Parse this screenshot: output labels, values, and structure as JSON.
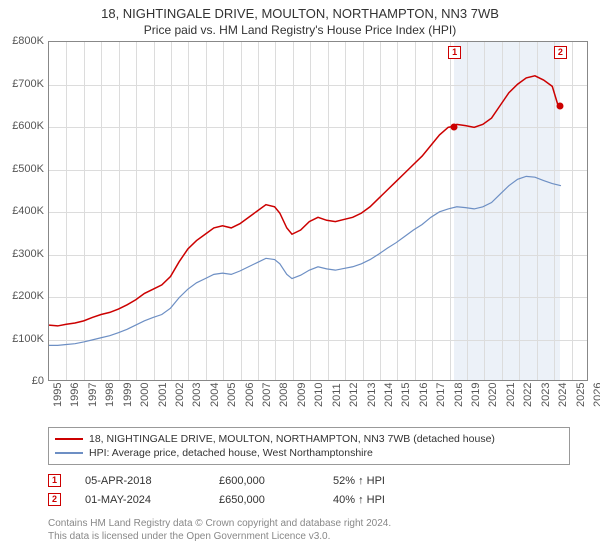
{
  "title": "18, NIGHTINGALE DRIVE, MOULTON, NORTHAMPTON, NN3 7WB",
  "subtitle": "Price paid vs. HM Land Registry's House Price Index (HPI)",
  "chart": {
    "type": "line",
    "background_color": "#ffffff",
    "grid_color": "#dcdcdc",
    "border_color": "#888888",
    "ylim": [
      0,
      800000
    ],
    "ytick_step": 100000,
    "yticks": [
      "£0",
      "£100K",
      "£200K",
      "£300K",
      "£400K",
      "£500K",
      "£600K",
      "£700K",
      "£800K"
    ],
    "xlim": [
      1995,
      2026
    ],
    "xticks": [
      1995,
      1996,
      1997,
      1998,
      1999,
      2000,
      2001,
      2002,
      2003,
      2004,
      2005,
      2006,
      2007,
      2008,
      2009,
      2010,
      2011,
      2012,
      2013,
      2014,
      2015,
      2016,
      2017,
      2018,
      2019,
      2020,
      2021,
      2022,
      2023,
      2024,
      2025,
      2026
    ],
    "label_fontsize": 11,
    "shade_range": [
      2018.26,
      2024.33
    ],
    "shade_color": "rgba(200,215,235,0.35)",
    "series": [
      {
        "name": "red",
        "color": "#cc0000",
        "width": 1.5,
        "data": [
          [
            1995.0,
            130
          ],
          [
            1995.5,
            128
          ],
          [
            1996.0,
            132
          ],
          [
            1996.5,
            135
          ],
          [
            1997.0,
            140
          ],
          [
            1997.5,
            148
          ],
          [
            1998.0,
            155
          ],
          [
            1998.5,
            160
          ],
          [
            1999.0,
            168
          ],
          [
            1999.5,
            178
          ],
          [
            2000.0,
            190
          ],
          [
            2000.5,
            205
          ],
          [
            2001.0,
            215
          ],
          [
            2001.5,
            225
          ],
          [
            2002.0,
            245
          ],
          [
            2002.5,
            280
          ],
          [
            2003.0,
            310
          ],
          [
            2003.5,
            330
          ],
          [
            2004.0,
            345
          ],
          [
            2004.5,
            360
          ],
          [
            2005.0,
            365
          ],
          [
            2005.5,
            360
          ],
          [
            2006.0,
            370
          ],
          [
            2006.5,
            385
          ],
          [
            2007.0,
            400
          ],
          [
            2007.5,
            415
          ],
          [
            2008.0,
            410
          ],
          [
            2008.3,
            395
          ],
          [
            2008.7,
            360
          ],
          [
            2009.0,
            345
          ],
          [
            2009.5,
            355
          ],
          [
            2010.0,
            375
          ],
          [
            2010.5,
            385
          ],
          [
            2011.0,
            378
          ],
          [
            2011.5,
            375
          ],
          [
            2012.0,
            380
          ],
          [
            2012.5,
            385
          ],
          [
            2013.0,
            395
          ],
          [
            2013.5,
            410
          ],
          [
            2014.0,
            430
          ],
          [
            2014.5,
            450
          ],
          [
            2015.0,
            470
          ],
          [
            2015.5,
            490
          ],
          [
            2016.0,
            510
          ],
          [
            2016.5,
            530
          ],
          [
            2017.0,
            555
          ],
          [
            2017.5,
            580
          ],
          [
            2018.0,
            598
          ],
          [
            2018.26,
            600
          ],
          [
            2018.5,
            605
          ],
          [
            2019.0,
            602
          ],
          [
            2019.5,
            598
          ],
          [
            2020.0,
            605
          ],
          [
            2020.5,
            620
          ],
          [
            2021.0,
            650
          ],
          [
            2021.5,
            680
          ],
          [
            2022.0,
            700
          ],
          [
            2022.5,
            715
          ],
          [
            2023.0,
            720
          ],
          [
            2023.5,
            710
          ],
          [
            2024.0,
            695
          ],
          [
            2024.33,
            650
          ]
        ]
      },
      {
        "name": "blue",
        "color": "#6d8fc4",
        "width": 1.2,
        "data": [
          [
            1995.0,
            82
          ],
          [
            1995.5,
            82
          ],
          [
            1996.0,
            84
          ],
          [
            1996.5,
            86
          ],
          [
            1997.0,
            90
          ],
          [
            1997.5,
            95
          ],
          [
            1998.0,
            100
          ],
          [
            1998.5,
            105
          ],
          [
            1999.0,
            112
          ],
          [
            1999.5,
            120
          ],
          [
            2000.0,
            130
          ],
          [
            2000.5,
            140
          ],
          [
            2001.0,
            148
          ],
          [
            2001.5,
            155
          ],
          [
            2002.0,
            170
          ],
          [
            2002.5,
            195
          ],
          [
            2003.0,
            215
          ],
          [
            2003.5,
            230
          ],
          [
            2004.0,
            240
          ],
          [
            2004.5,
            250
          ],
          [
            2005.0,
            253
          ],
          [
            2005.5,
            250
          ],
          [
            2006.0,
            258
          ],
          [
            2006.5,
            268
          ],
          [
            2007.0,
            278
          ],
          [
            2007.5,
            288
          ],
          [
            2008.0,
            285
          ],
          [
            2008.3,
            275
          ],
          [
            2008.7,
            250
          ],
          [
            2009.0,
            240
          ],
          [
            2009.5,
            248
          ],
          [
            2010.0,
            260
          ],
          [
            2010.5,
            268
          ],
          [
            2011.0,
            263
          ],
          [
            2011.5,
            260
          ],
          [
            2012.0,
            264
          ],
          [
            2012.5,
            268
          ],
          [
            2013.0,
            275
          ],
          [
            2013.5,
            285
          ],
          [
            2014.0,
            298
          ],
          [
            2014.5,
            312
          ],
          [
            2015.0,
            325
          ],
          [
            2015.5,
            340
          ],
          [
            2016.0,
            355
          ],
          [
            2016.5,
            368
          ],
          [
            2017.0,
            385
          ],
          [
            2017.5,
            398
          ],
          [
            2018.0,
            405
          ],
          [
            2018.5,
            410
          ],
          [
            2019.0,
            408
          ],
          [
            2019.5,
            405
          ],
          [
            2020.0,
            410
          ],
          [
            2020.5,
            420
          ],
          [
            2021.0,
            440
          ],
          [
            2021.5,
            460
          ],
          [
            2022.0,
            475
          ],
          [
            2022.5,
            482
          ],
          [
            2023.0,
            480
          ],
          [
            2023.5,
            472
          ],
          [
            2024.0,
            465
          ],
          [
            2024.5,
            460
          ]
        ]
      }
    ],
    "sale_points": [
      {
        "n": "1",
        "x": 2018.26,
        "y": 600,
        "color": "#cc0000"
      },
      {
        "n": "2",
        "x": 2024.33,
        "y": 650,
        "color": "#cc0000"
      }
    ],
    "marker_border_color": "#cc0000",
    "marker_text_color": "#cc0000"
  },
  "legend": {
    "items": [
      {
        "color": "#cc0000",
        "label": "18, NIGHTINGALE DRIVE, MOULTON, NORTHAMPTON, NN3 7WB (detached house)"
      },
      {
        "color": "#6d8fc4",
        "label": "HPI: Average price, detached house, West Northamptonshire"
      }
    ]
  },
  "sales": [
    {
      "n": "1",
      "date": "05-APR-2018",
      "price": "£600,000",
      "hpi": "52% ↑ HPI"
    },
    {
      "n": "2",
      "date": "01-MAY-2024",
      "price": "£650,000",
      "hpi": "40% ↑ HPI"
    }
  ],
  "footer": {
    "line1": "Contains HM Land Registry data © Crown copyright and database right 2024.",
    "line2": "This data is licensed under the Open Government Licence v3.0."
  }
}
